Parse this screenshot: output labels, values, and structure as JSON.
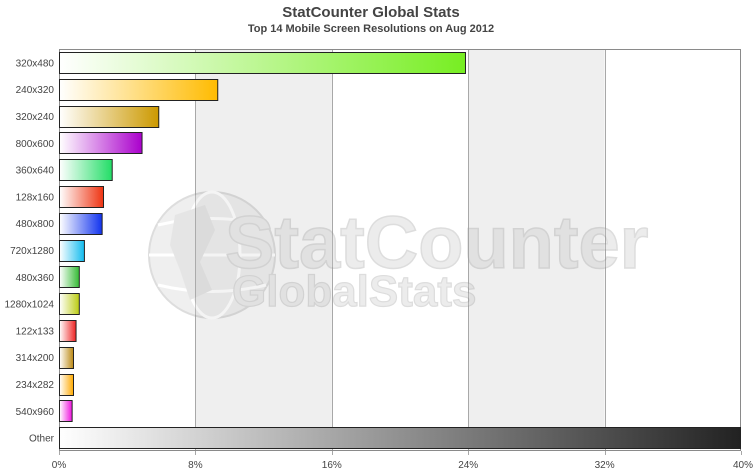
{
  "colors": {
    "band": "#efefef",
    "plot_background": "#ffffff",
    "gridline": "#a8a8a8",
    "axis_text": "#444444",
    "bar_outline": "#222222"
  },
  "chart_data": {
    "type": "bar",
    "orientation": "horizontal",
    "title": "StatCounter Global Stats",
    "subtitle": "Top 14 Mobile Screen Resolutions on Aug 2012",
    "xlabel": "",
    "ylabel": "",
    "xlim": [
      0,
      40
    ],
    "x_ticks": [
      "0%",
      "8%",
      "16%",
      "24%",
      "32%",
      "40%"
    ],
    "grid": "vertical, with alternating shaded bands",
    "legend": "none",
    "watermark": "StatCounter GlobalStats",
    "categories": [
      "320x480",
      "240x320",
      "320x240",
      "800x600",
      "360x640",
      "128x160",
      "480x800",
      "720x1280",
      "480x360",
      "1280x1024",
      "122x133",
      "314x200",
      "234x282",
      "540x960",
      "Other"
    ],
    "values": [
      23.87,
      9.34,
      5.88,
      4.9,
      3.15,
      2.64,
      2.56,
      1.52,
      1.22,
      1.22,
      1.03,
      0.88,
      0.88,
      0.8,
      40.0
    ],
    "bar_colors": [
      "#77ee22",
      "#ffbb00",
      "#cc9900",
      "#aa00cc",
      "#22dd66",
      "#ee3311",
      "#1133ee",
      "#11bbee",
      "#33bb33",
      "#bbcc11",
      "#ee2222",
      "#bb8811",
      "#ffaa00",
      "#ee11dd",
      "#222222"
    ]
  }
}
